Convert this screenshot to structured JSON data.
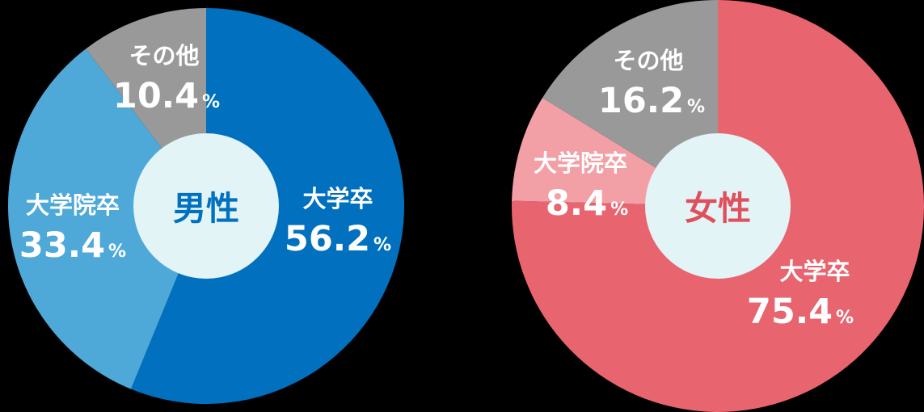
{
  "chart_data": [
    {
      "type": "pie",
      "center_label": "男性",
      "center_color": "#0070bf",
      "hole_color": "#e3f4f7",
      "slices": [
        {
          "label": "大学卒",
          "value": 56.2,
          "display": "56.2",
          "unit": "%",
          "color": "#0070bf"
        },
        {
          "label": "大学院卒",
          "value": 33.4,
          "display": "33.4",
          "unit": "%",
          "color": "#4ea9d9"
        },
        {
          "label": "その他",
          "value": 10.4,
          "display": "10.4",
          "unit": "%",
          "color": "#999999"
        }
      ]
    },
    {
      "type": "pie",
      "center_label": "女性",
      "center_color": "#e0505c",
      "hole_color": "#e3f4f7",
      "slices": [
        {
          "label": "大学卒",
          "value": 75.4,
          "display": "75.4",
          "unit": "%",
          "color": "#e8646f"
        },
        {
          "label": "大学院卒",
          "value": 8.4,
          "display": "8.4",
          "unit": "%",
          "color": "#f2a0a6"
        },
        {
          "label": "その他",
          "value": 16.2,
          "display": "16.2",
          "unit": "%",
          "color": "#999999"
        }
      ]
    }
  ]
}
